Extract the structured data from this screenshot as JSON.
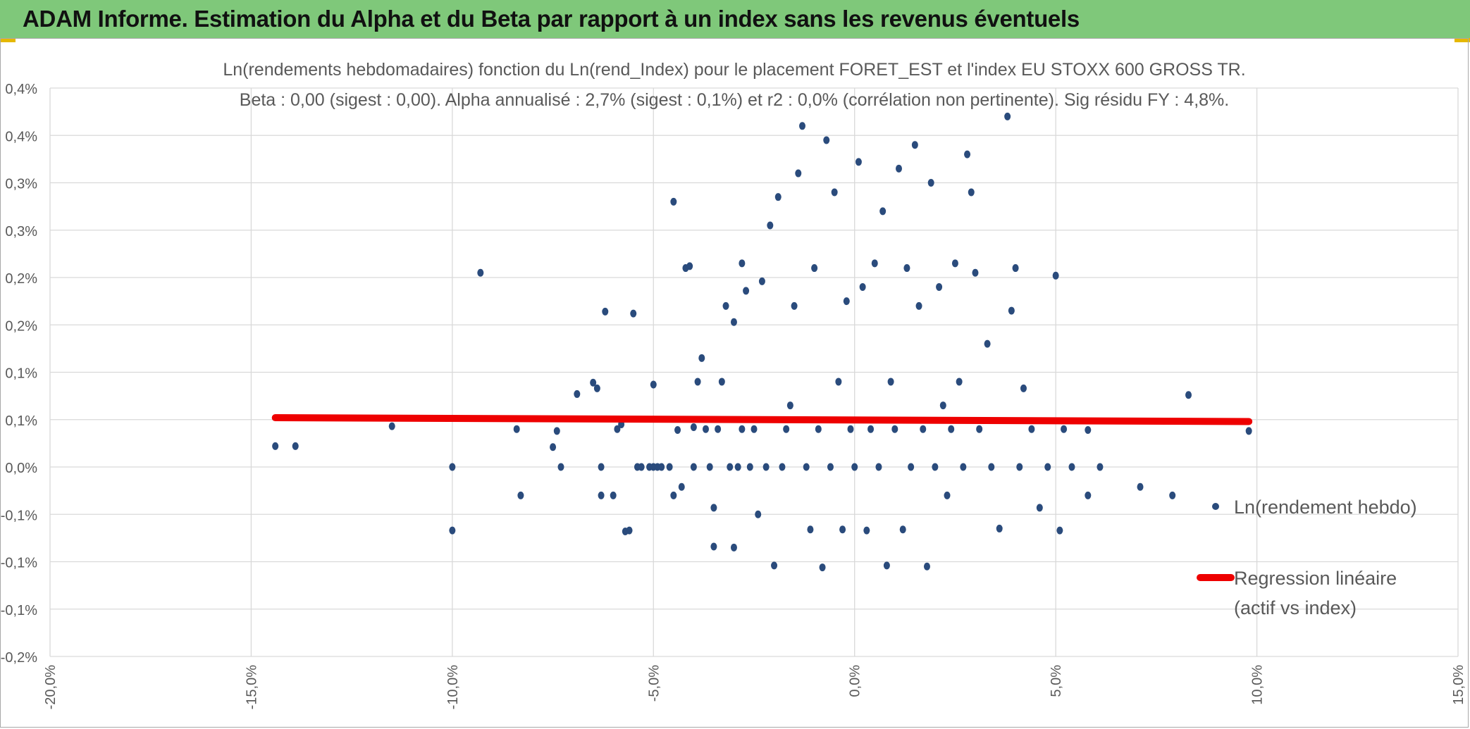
{
  "header": {
    "title": "ADAM Informe. Estimation du Alpha et du Beta par rapport à un index sans les revenus éventuels"
  },
  "colors": {
    "header_bg": "#7fc87a",
    "points": "#2a4b7c",
    "regression": "#ee0000",
    "grid": "#d9d9d9",
    "text": "#595959"
  },
  "chart_data": {
    "type": "scatter",
    "title": "Ln(rendements hebdomadaires) fonction du Ln(rend_Index) pour le placement FORET_EST et l'index EU STOXX 600 GROSS TR.",
    "subtitle": "Beta : 0,00 (sigest : 0,00). Alpha annualisé : 2,7% (sigest : 0,1%) et r2 : 0,0% (corrélation non pertinente). Sig résidu FY : 4,8%.",
    "xlabel": "",
    "ylabel": "",
    "xlim": [
      -20,
      15
    ],
    "ylim": [
      -0.2,
      0.4
    ],
    "x_ticks": [
      -20,
      -15,
      -10,
      -5,
      0,
      5,
      10,
      15
    ],
    "x_tick_labels": [
      "-20,0%",
      "-15,0%",
      "-10,0%",
      "-5,0%",
      "0,0%",
      "5,0%",
      "10,0%",
      "15,0%"
    ],
    "y_ticks": [
      -0.2,
      -0.15,
      -0.1,
      -0.05,
      0,
      0.05,
      0.1,
      0.15,
      0.2,
      0.25,
      0.3,
      0.35,
      0.4
    ],
    "y_tick_labels": [
      "-0,2%",
      "-0,1%",
      "-0,1%",
      "-0,1%",
      "0,0%",
      "0,1%",
      "0,1%",
      "0,2%",
      "0,2%",
      "0,3%",
      "0,3%",
      "0,4%",
      "0,4%"
    ],
    "grid": true,
    "legend": {
      "position": "right",
      "entries": [
        "Ln(rendement hebdo)",
        "Regression linéaire (actif vs index)"
      ]
    },
    "regression": {
      "name": "Regression linéaire (actif vs index)",
      "x": [
        -14.4,
        9.8
      ],
      "y": [
        0.052,
        0.048
      ]
    },
    "series": [
      {
        "name": "Ln(rendement hebdo)",
        "points": [
          [
            -14.4,
            0.022
          ],
          [
            -13.9,
            0.022
          ],
          [
            -11.5,
            0.043
          ],
          [
            -10.0,
            0.0
          ],
          [
            -10.0,
            -0.067
          ],
          [
            -9.3,
            0.205
          ],
          [
            -8.4,
            0.04
          ],
          [
            -8.3,
            -0.03
          ],
          [
            -7.5,
            0.021
          ],
          [
            -7.4,
            0.038
          ],
          [
            -7.3,
            0.0
          ],
          [
            -6.9,
            0.077
          ],
          [
            -6.5,
            0.089
          ],
          [
            -6.4,
            0.083
          ],
          [
            -6.3,
            0.0
          ],
          [
            -6.3,
            -0.03
          ],
          [
            -6.2,
            0.164
          ],
          [
            -6.0,
            -0.03
          ],
          [
            -5.9,
            0.04
          ],
          [
            -5.8,
            0.045
          ],
          [
            -5.7,
            -0.068
          ],
          [
            -5.6,
            -0.067
          ],
          [
            -5.5,
            0.162
          ],
          [
            -5.4,
            0.0
          ],
          [
            -5.3,
            0.0
          ],
          [
            -5.1,
            0.0
          ],
          [
            -5.0,
            0.0
          ],
          [
            -5.0,
            0.087
          ],
          [
            -4.9,
            0.0
          ],
          [
            -4.8,
            0.0
          ],
          [
            -4.6,
            0.0
          ],
          [
            -4.5,
            0.28
          ],
          [
            -4.5,
            -0.03
          ],
          [
            -4.4,
            0.039
          ],
          [
            -4.3,
            -0.021
          ],
          [
            -4.2,
            0.21
          ],
          [
            -4.1,
            0.212
          ],
          [
            -4.0,
            0.0
          ],
          [
            -4.0,
            0.042
          ],
          [
            -3.9,
            0.09
          ],
          [
            -3.8,
            0.115
          ],
          [
            -3.7,
            0.04
          ],
          [
            -3.6,
            0.0
          ],
          [
            -3.5,
            -0.043
          ],
          [
            -3.5,
            -0.084
          ],
          [
            -3.4,
            0.04
          ],
          [
            -3.3,
            0.09
          ],
          [
            -3.2,
            0.17
          ],
          [
            -3.1,
            0.0
          ],
          [
            -3.0,
            -0.085
          ],
          [
            -3.0,
            0.153
          ],
          [
            -2.9,
            0.0
          ],
          [
            -2.8,
            0.04
          ],
          [
            -2.8,
            0.215
          ],
          [
            -2.7,
            0.186
          ],
          [
            -2.6,
            0.0
          ],
          [
            -2.5,
            0.04
          ],
          [
            -2.4,
            -0.05
          ],
          [
            -2.3,
            0.196
          ],
          [
            -2.2,
            0.0
          ],
          [
            -2.1,
            0.255
          ],
          [
            -2.0,
            -0.104
          ],
          [
            -1.9,
            0.285
          ],
          [
            -1.8,
            0.0
          ],
          [
            -1.7,
            0.04
          ],
          [
            -1.6,
            0.065
          ],
          [
            -1.5,
            0.17
          ],
          [
            -1.4,
            0.31
          ],
          [
            -1.3,
            0.36
          ],
          [
            -1.2,
            0.0
          ],
          [
            -1.1,
            -0.066
          ],
          [
            -1.0,
            0.21
          ],
          [
            -0.9,
            0.04
          ],
          [
            -0.8,
            -0.106
          ],
          [
            -0.7,
            0.345
          ],
          [
            -0.6,
            0.0
          ],
          [
            -0.5,
            0.29
          ],
          [
            -0.4,
            0.09
          ],
          [
            -0.3,
            -0.066
          ],
          [
            -0.2,
            0.175
          ],
          [
            -0.1,
            0.04
          ],
          [
            0.0,
            0.0
          ],
          [
            0.1,
            0.322
          ],
          [
            0.2,
            0.19
          ],
          [
            0.3,
            -0.067
          ],
          [
            0.4,
            0.04
          ],
          [
            0.5,
            0.215
          ],
          [
            0.6,
            0.0
          ],
          [
            0.7,
            0.27
          ],
          [
            0.8,
            -0.104
          ],
          [
            0.9,
            0.09
          ],
          [
            1.0,
            0.04
          ],
          [
            1.1,
            0.315
          ],
          [
            1.2,
            -0.066
          ],
          [
            1.3,
            0.21
          ],
          [
            1.4,
            0.0
          ],
          [
            1.5,
            0.34
          ],
          [
            1.6,
            0.17
          ],
          [
            1.7,
            0.04
          ],
          [
            1.8,
            -0.105
          ],
          [
            1.9,
            0.3
          ],
          [
            2.0,
            0.0
          ],
          [
            2.1,
            0.19
          ],
          [
            2.2,
            0.065
          ],
          [
            2.3,
            -0.03
          ],
          [
            2.4,
            0.04
          ],
          [
            2.5,
            0.215
          ],
          [
            2.6,
            0.09
          ],
          [
            2.7,
            0.0
          ],
          [
            2.8,
            0.33
          ],
          [
            2.9,
            0.29
          ],
          [
            3.0,
            0.205
          ],
          [
            3.1,
            0.04
          ],
          [
            3.3,
            0.13
          ],
          [
            3.4,
            0.0
          ],
          [
            3.6,
            -0.065
          ],
          [
            3.8,
            0.37
          ],
          [
            3.9,
            0.165
          ],
          [
            4.0,
            0.21
          ],
          [
            4.1,
            0.0
          ],
          [
            4.2,
            0.083
          ],
          [
            4.4,
            0.04
          ],
          [
            4.6,
            -0.043
          ],
          [
            4.8,
            0.0
          ],
          [
            5.0,
            0.202
          ],
          [
            5.1,
            -0.067
          ],
          [
            5.2,
            0.04
          ],
          [
            5.4,
            0.0
          ],
          [
            5.8,
            0.039
          ],
          [
            5.8,
            -0.03
          ],
          [
            6.1,
            0.0
          ],
          [
            7.1,
            -0.021
          ],
          [
            7.9,
            -0.03
          ],
          [
            8.3,
            0.076
          ],
          [
            9.8,
            0.038
          ]
        ]
      }
    ]
  }
}
